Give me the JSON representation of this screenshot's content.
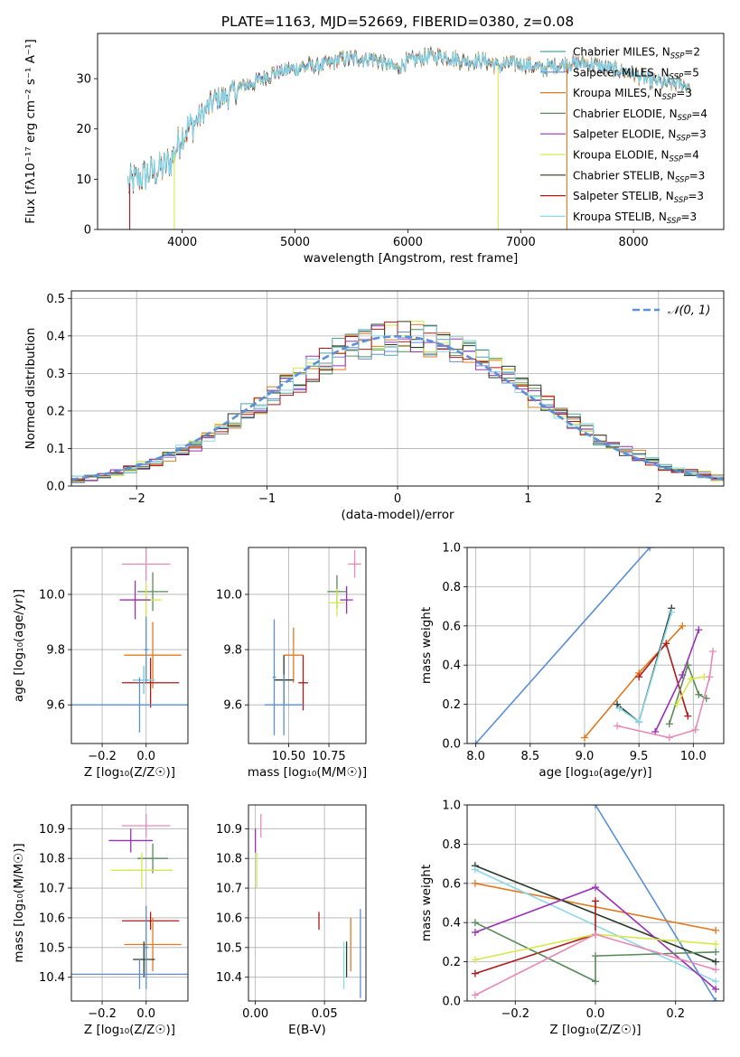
{
  "figure_title": "PLATE=1163, MJD=52669, FIBERID=0380, z=0.08",
  "colors": {
    "Chabrier MILES": "#4aa8a0",
    "Salpeter MILES": "#6b8ad8",
    "Kroupa MILES": "#e07a20",
    "Chabrier ELODIE": "#5a8a5a",
    "Salpeter ELODIE": "#9b30b8",
    "Kroupa ELODIE": "#d6e84a",
    "Chabrier STELIB": "#2a3a2a",
    "Salpeter STELIB": "#b01818",
    "Kroupa STELIB": "#8ad8e8",
    "normal": "#5b8fd6",
    "pink": "#e88ab8",
    "grid": "#b0b0b0"
  },
  "chart_data": [
    {
      "id": "spectrum",
      "type": "line",
      "title": "PLATE=1163, MJD=52669, FIBERID=0380, z=0.08",
      "xlabel": "wavelength [Angstrom, rest frame]",
      "ylabel": "Flux [fλ10⁻¹⁷ erg cm⁻² s⁻¹ A⁻¹]",
      "xlim": [
        3250,
        8800
      ],
      "ylim": [
        0,
        39
      ],
      "xticks": [
        "4000",
        "5000",
        "6000",
        "7000",
        "8000"
      ],
      "yticks": [
        "0",
        "10",
        "20",
        "30"
      ],
      "grid": false,
      "legend_position": "top-right",
      "legend": [
        {
          "name": "Chabrier MILES",
          "nssp": "2"
        },
        {
          "name": "Salpeter MILES",
          "nssp": "5"
        },
        {
          "name": "Kroupa MILES",
          "nssp": "3"
        },
        {
          "name": "Chabrier ELODIE",
          "nssp": "4"
        },
        {
          "name": "Salpeter ELODIE",
          "nssp": "3"
        },
        {
          "name": "Kroupa ELODIE",
          "nssp": "4"
        },
        {
          "name": "Chabrier STELIB",
          "nssp": "3"
        },
        {
          "name": "Salpeter STELIB",
          "nssp": "3"
        },
        {
          "name": "Kroupa STELIB",
          "nssp": "3"
        }
      ],
      "legend_prefix": "N",
      "legend_sub": "SSP",
      "legend_eq": "=",
      "continuum": {
        "x": [
          3520,
          3600,
          3700,
          3800,
          3900,
          4000,
          4100,
          4200,
          4300,
          4400,
          4500,
          4600,
          4700,
          4800,
          4900,
          5000,
          5100,
          5200,
          5300,
          5400,
          5500,
          5600,
          5700,
          5800,
          5900,
          6000,
          6100,
          6200,
          6300,
          6400,
          6500,
          6600,
          6700,
          6800,
          6900,
          7000,
          7100,
          7200,
          7300,
          7400,
          7500,
          7600,
          7700,
          7800,
          7900,
          8000,
          8100,
          8200,
          8300,
          8400,
          8500
        ],
        "y": [
          9,
          10,
          11,
          12,
          13.5,
          19,
          21,
          23.5,
          26,
          26.5,
          28,
          29,
          30,
          31,
          31.5,
          32,
          32.5,
          32.5,
          33,
          34,
          34,
          34,
          34,
          33,
          32,
          33.5,
          34,
          34.5,
          34.5,
          34,
          33.5,
          33.5,
          33.5,
          32.5,
          33,
          33,
          32.5,
          32,
          32.5,
          33,
          33,
          33,
          32.5,
          32,
          31.5,
          31,
          30,
          29.5,
          29,
          29,
          28.5
        ]
      },
      "drops": [
        {
          "series": "Kroupa ELODIE",
          "x": 3930
        },
        {
          "series": "Kroupa ELODIE",
          "x": 6800
        },
        {
          "series": "Kroupa MILES",
          "x": 7410
        },
        {
          "series": "Salpeter STELIB",
          "x": 3535
        }
      ]
    },
    {
      "id": "residuals",
      "type": "histogram",
      "xlabel": "(data-model)/error",
      "ylabel": "Normed distribution",
      "xlim": [
        -2.5,
        2.5
      ],
      "ylim": [
        0,
        0.52
      ],
      "xticks": [
        "−2",
        "−1",
        "0",
        "1",
        "2"
      ],
      "yticks": [
        "0.0",
        "0.1",
        "0.2",
        "0.3",
        "0.4",
        "0.5"
      ],
      "grid": true,
      "legend_position": "top-right",
      "normal_label": "𝒩(0, 1)",
      "bin_width": 0.1
    },
    {
      "id": "age-vs-Z",
      "type": "errorbar",
      "xlabel": "Z [log₁₀(Z/Z☉)]",
      "ylabel": "age  [log₁₀(age/yr)]",
      "xlim": [
        -0.34,
        0.19
      ],
      "ylim": [
        9.46,
        10.17
      ],
      "xticks": [
        {
          "v": -0.2,
          "t": "−0.2"
        },
        {
          "v": 0.0,
          "t": "0.0"
        }
      ],
      "yticks": [
        {
          "v": 9.6,
          "t": "9.6"
        },
        {
          "v": 9.8,
          "t": "9.8"
        },
        {
          "v": 10.0,
          "t": "10.0"
        }
      ],
      "points": [
        {
          "c": "pink",
          "x": 0.0,
          "xe": 0.11,
          "y": 10.11,
          "ye": 0.06
        },
        {
          "c": "Chabrier ELODIE",
          "x": 0.03,
          "xe": 0.07,
          "y": 10.01,
          "ye": 0.07
        },
        {
          "c": "Kroupa ELODIE",
          "x": 0.0,
          "xe": 0.07,
          "y": 9.98,
          "ye": 0.06
        },
        {
          "c": "Salpeter ELODIE",
          "x": -0.05,
          "xe": 0.07,
          "y": 9.98,
          "ye": 0.07
        },
        {
          "c": "Kroupa MILES",
          "x": 0.03,
          "xe": 0.13,
          "y": 9.78,
          "ye": 0.12
        },
        {
          "c": "Salpeter STELIB",
          "x": 0.02,
          "xe": 0.13,
          "y": 9.68,
          "ye": 0.09
        },
        {
          "c": "Chabrier STELIB",
          "x": -0.01,
          "xe": 0.05,
          "y": 9.69,
          "ye": 0.05
        },
        {
          "c": "Kroupa STELIB",
          "x": -0.01,
          "xe": 0.05,
          "y": 9.69,
          "ye": 0.05
        },
        {
          "c": "normal",
          "x": -0.03,
          "xe": 0.33,
          "y": 9.6,
          "ye": 0.1
        },
        {
          "c": "normal",
          "x": 0.0,
          "xe": 0.01,
          "y": 9.8,
          "ye": 0.12
        }
      ]
    },
    {
      "id": "age-vs-mass",
      "type": "errorbar",
      "xlabel": "mass [log₁₀(M/M☉)]",
      "ylabel": "",
      "xlim": [
        10.25,
        10.98
      ],
      "ylim": [
        9.46,
        10.17
      ],
      "xticks": [
        {
          "v": 10.5,
          "t": "10.50"
        },
        {
          "v": 10.75,
          "t": "10.75"
        }
      ],
      "yticks": [
        {
          "v": 9.6,
          "t": "9.6"
        },
        {
          "v": 9.8,
          "t": "9.8"
        },
        {
          "v": 10.0,
          "t": "10.0"
        }
      ],
      "points": [
        {
          "c": "pink",
          "x": 10.91,
          "xe": 0.04,
          "y": 10.11,
          "ye": 0.05
        },
        {
          "c": "Chabrier ELODIE",
          "x": 10.8,
          "xe": 0.06,
          "y": 10.01,
          "ye": 0.06
        },
        {
          "c": "Salpeter ELODIE",
          "x": 10.86,
          "xe": 0.04,
          "y": 9.98,
          "ye": 0.05
        },
        {
          "c": "Kroupa ELODIE",
          "x": 10.8,
          "xe": 0.05,
          "y": 9.97,
          "ye": 0.05
        },
        {
          "c": "Kroupa MILES",
          "x": 10.53,
          "xe": 0.06,
          "y": 9.78,
          "ye": 0.1
        },
        {
          "c": "Salpeter STELIB",
          "x": 10.59,
          "xe": 0.03,
          "y": 9.68,
          "ye": 0.1
        },
        {
          "c": "Chabrier STELIB",
          "x": 10.47,
          "xe": 0.06,
          "y": 9.69,
          "ye": 0.09
        },
        {
          "c": "normal",
          "x": 10.47,
          "xe": 0.12,
          "y": 9.6,
          "ye": 0.11
        },
        {
          "c": "normal",
          "x": 10.41,
          "xe": 0.01,
          "y": 9.7,
          "ye": 0.21
        }
      ]
    },
    {
      "id": "massweight-vs-age",
      "type": "line",
      "xlabel": "age  [log₁₀(age/yr)]",
      "ylabel": "mass weight",
      "xlim": [
        7.92,
        10.28
      ],
      "ylim": [
        0,
        1
      ],
      "xticks": [
        {
          "v": 8.0,
          "t": "8.0"
        },
        {
          "v": 8.5,
          "t": "8.5"
        },
        {
          "v": 9.0,
          "t": "9.0"
        },
        {
          "v": 9.5,
          "t": "9.5"
        },
        {
          "v": 10.0,
          "t": "10.0"
        }
      ],
      "yticks": [
        {
          "v": 0,
          "t": "0.0"
        },
        {
          "v": 0.2,
          "t": "0.2"
        },
        {
          "v": 0.4,
          "t": "0.4"
        },
        {
          "v": 0.6,
          "t": "0.6"
        },
        {
          "v": 0.8,
          "t": "0.8"
        },
        {
          "v": 1.0,
          "t": "1.0"
        }
      ],
      "series": [
        {
          "c": "normal",
          "x": [
            8.0,
            9.6
          ],
          "y": [
            0.0,
            1.0
          ]
        },
        {
          "c": "Kroupa MILES",
          "x": [
            9.0,
            9.5,
            9.9
          ],
          "y": [
            0.03,
            0.36,
            0.6
          ]
        },
        {
          "c": "Salpeter STELIB",
          "x": [
            9.5,
            9.75,
            9.95
          ],
          "y": [
            0.34,
            0.51,
            0.14
          ]
        },
        {
          "c": "Chabrier STELIB",
          "x": [
            9.3,
            9.5,
            9.8
          ],
          "y": [
            0.2,
            0.11,
            0.69
          ]
        },
        {
          "c": "Kroupa STELIB",
          "x": [
            9.32,
            9.5,
            9.8
          ],
          "y": [
            0.18,
            0.11,
            0.67
          ]
        },
        {
          "c": "Salpeter ELODIE",
          "x": [
            9.65,
            9.9,
            10.05
          ],
          "y": [
            0.06,
            0.35,
            0.58
          ]
        },
        {
          "c": "Chabrier ELODIE",
          "x": [
            9.78,
            9.95,
            10.05,
            10.12
          ],
          "y": [
            0.1,
            0.4,
            0.25,
            0.23
          ]
        },
        {
          "c": "Kroupa ELODIE",
          "x": [
            9.85,
            9.98,
            10.1
          ],
          "y": [
            0.2,
            0.33,
            0.34
          ]
        },
        {
          "c": "pink",
          "x": [
            9.3,
            9.78,
            10.02,
            10.15,
            10.18
          ],
          "y": [
            0.09,
            0.03,
            0.07,
            0.34,
            0.47
          ]
        }
      ]
    },
    {
      "id": "mass-vs-Z",
      "type": "errorbar",
      "xlabel": "Z [log₁₀(Z/Z☉)]",
      "ylabel": "mass [log₁₀(M/M☉)]",
      "xlim": [
        -0.34,
        0.19
      ],
      "ylim": [
        10.32,
        10.98
      ],
      "xticks": [
        {
          "v": -0.2,
          "t": "−0.2"
        },
        {
          "v": 0.0,
          "t": "0.0"
        }
      ],
      "yticks": [
        {
          "v": 10.4,
          "t": "10.4"
        },
        {
          "v": 10.5,
          "t": "10.5"
        },
        {
          "v": 10.6,
          "t": "10.6"
        },
        {
          "v": 10.7,
          "t": "10.7"
        },
        {
          "v": 10.8,
          "t": "10.8"
        },
        {
          "v": 10.9,
          "t": "10.9"
        }
      ],
      "points": [
        {
          "c": "pink",
          "x": 0.0,
          "xe": 0.11,
          "y": 10.91,
          "ye": 0.04
        },
        {
          "c": "Salpeter ELODIE",
          "x": -0.07,
          "xe": 0.1,
          "y": 10.86,
          "ye": 0.04
        },
        {
          "c": "Chabrier ELODIE",
          "x": 0.03,
          "xe": 0.07,
          "y": 10.8,
          "ye": 0.05
        },
        {
          "c": "Kroupa ELODIE",
          "x": -0.02,
          "xe": 0.14,
          "y": 10.76,
          "ye": 0.06
        },
        {
          "c": "Salpeter STELIB",
          "x": 0.02,
          "xe": 0.13,
          "y": 10.59,
          "ye": 0.03
        },
        {
          "c": "Kroupa MILES",
          "x": 0.03,
          "xe": 0.13,
          "y": 10.51,
          "ye": 0.09
        },
        {
          "c": "Chabrier STELIB",
          "x": -0.01,
          "xe": 0.05,
          "y": 10.46,
          "ye": 0.06
        },
        {
          "c": "normal",
          "x": -0.03,
          "xe": 0.33,
          "y": 10.41,
          "ye": 0.05
        },
        {
          "c": "normal",
          "x": 0.0,
          "xe": 0.01,
          "y": 10.5,
          "ye": 0.14
        }
      ]
    },
    {
      "id": "mass-vs-ebv",
      "type": "errorbar",
      "xlabel": "E(B-V)",
      "ylabel": "",
      "xlim": [
        -0.005,
        0.08
      ],
      "ylim": [
        10.32,
        10.98
      ],
      "xticks": [
        {
          "v": 0.0,
          "t": "0.00"
        },
        {
          "v": 0.05,
          "t": "0.05"
        }
      ],
      "yticks": [
        {
          "v": 10.4,
          "t": "10.4"
        },
        {
          "v": 10.5,
          "t": "10.5"
        },
        {
          "v": 10.6,
          "t": "10.6"
        },
        {
          "v": 10.7,
          "t": "10.7"
        },
        {
          "v": 10.8,
          "t": "10.8"
        },
        {
          "v": 10.9,
          "t": "10.9"
        }
      ],
      "points": [
        {
          "c": "pink",
          "x": 0.004,
          "xe": 0.0,
          "y": 10.91,
          "ye": 0.04
        },
        {
          "c": "Kroupa ELODIE",
          "x": 0.001,
          "xe": 0.0,
          "y": 10.76,
          "ye": 0.06
        },
        {
          "c": "Salpeter ELODIE",
          "x": 0.0,
          "xe": 0.0,
          "y": 10.86,
          "ye": 0.04
        },
        {
          "c": "Salpeter STELIB",
          "x": 0.046,
          "xe": 0.0,
          "y": 10.59,
          "ye": 0.03
        },
        {
          "c": "Kroupa MILES",
          "x": 0.069,
          "xe": 0.0,
          "y": 10.51,
          "ye": 0.09
        },
        {
          "c": "Chabrier STELIB",
          "x": 0.066,
          "xe": 0.0,
          "y": 10.46,
          "ye": 0.06
        },
        {
          "c": "Kroupa STELIB",
          "x": 0.064,
          "xe": 0.0,
          "y": 10.44,
          "ye": 0.08
        },
        {
          "c": "normal",
          "x": 0.076,
          "xe": 0.0,
          "y": 10.48,
          "ye": 0.15
        }
      ]
    },
    {
      "id": "massweight-vs-Z",
      "type": "line",
      "xlabel": "Z [log₁₀(Z/Z☉)]",
      "ylabel": "mass weight",
      "xlim": [
        -0.32,
        0.32
      ],
      "ylim": [
        0,
        1
      ],
      "xticks": [
        {
          "v": -0.2,
          "t": "−0.2"
        },
        {
          "v": 0.0,
          "t": "0.0"
        },
        {
          "v": 0.2,
          "t": "0.2"
        }
      ],
      "yticks": [
        {
          "v": 0,
          "t": "0.0"
        },
        {
          "v": 0.2,
          "t": "0.2"
        },
        {
          "v": 0.4,
          "t": "0.4"
        },
        {
          "v": 0.6,
          "t": "0.6"
        },
        {
          "v": 0.8,
          "t": "0.8"
        },
        {
          "v": 1.0,
          "t": "1.0"
        }
      ],
      "series": [
        {
          "c": "normal",
          "x": [
            0.0,
            0.3
          ],
          "y": [
            1.0,
            0.0
          ]
        },
        {
          "c": "Kroupa MILES",
          "x": [
            -0.3,
            0.3
          ],
          "y": [
            0.6,
            0.36
          ]
        },
        {
          "c": "Chabrier STELIB",
          "x": [
            -0.3,
            0.3
          ],
          "y": [
            0.69,
            0.2
          ]
        },
        {
          "c": "Kroupa STELIB",
          "x": [
            -0.3,
            0.3
          ],
          "y": [
            0.67,
            0.1
          ]
        },
        {
          "c": "Salpeter ELODIE",
          "x": [
            -0.3,
            0.0,
            0.3
          ],
          "y": [
            0.35,
            0.58,
            0.06
          ]
        },
        {
          "c": "Salpeter STELIB",
          "x": [
            -0.3,
            0.0,
            0.0
          ],
          "y": [
            0.14,
            0.34,
            0.51
          ]
        },
        {
          "c": "Chabrier ELODIE",
          "x": [
            -0.3,
            0.0,
            0.0,
            0.3
          ],
          "y": [
            0.4,
            0.1,
            0.23,
            0.25
          ]
        },
        {
          "c": "Kroupa ELODIE",
          "x": [
            -0.3,
            0.0,
            0.3
          ],
          "y": [
            0.21,
            0.34,
            0.29
          ]
        },
        {
          "c": "pink",
          "x": [
            -0.3,
            0.0,
            0.3
          ],
          "y": [
            0.03,
            0.34,
            0.16
          ]
        }
      ]
    }
  ]
}
